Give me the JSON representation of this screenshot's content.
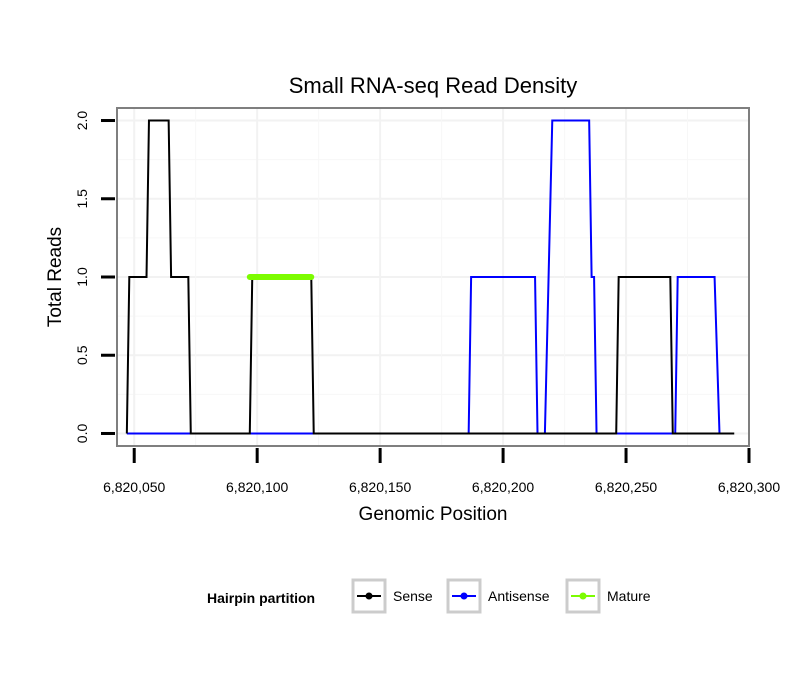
{
  "chart_data": {
    "type": "line",
    "title": "Small RNA-seq Read Density",
    "xlabel": "Genomic Position",
    "ylabel": "Total Reads",
    "xlim": [
      6820043,
      6820300
    ],
    "ylim": [
      -0.08,
      2.08
    ],
    "x_ticks": [
      6820050,
      6820100,
      6820150,
      6820200,
      6820250,
      6820300
    ],
    "x_tick_labels": [
      "6,820,050",
      "6,820,100",
      "6,820,150",
      "6,820,200",
      "6,820,250",
      "6,820,300"
    ],
    "y_ticks": [
      0,
      0.5,
      1,
      1.5,
      2
    ],
    "y_tick_labels": [
      "0.0",
      "0.5",
      "1.0",
      "1.5",
      "2.0"
    ],
    "grid": true,
    "legend": {
      "title": "Hairpin partition",
      "position": "bottom"
    },
    "series": [
      {
        "name": "Sense",
        "color": "#000000",
        "x": [
          6820047,
          6820048,
          6820055,
          6820056,
          6820064,
          6820065,
          6820072,
          6820073,
          6820097,
          6820098,
          6820122,
          6820123,
          6820246,
          6820247,
          6820268,
          6820269,
          6820294
        ],
        "y": [
          0,
          1,
          1,
          2,
          2,
          1,
          1,
          0,
          0,
          1,
          1,
          0,
          0,
          1,
          1,
          0,
          0
        ]
      },
      {
        "name": "Antisense",
        "color": "#0000ff",
        "x": [
          6820047,
          6820186,
          6820187,
          6820213,
          6820214,
          6820217,
          6820220,
          6820235,
          6820236,
          6820237,
          6820238,
          6820267,
          6820270,
          6820271,
          6820286,
          6820288
        ],
        "y": [
          0,
          0,
          1,
          1,
          0,
          0,
          2,
          2,
          1,
          1,
          0,
          0,
          0,
          1,
          1,
          0
        ]
      },
      {
        "name": "Mature",
        "color": "#7cfc00",
        "x": [
          6820097,
          6820122
        ],
        "y": [
          1,
          1
        ]
      }
    ]
  }
}
